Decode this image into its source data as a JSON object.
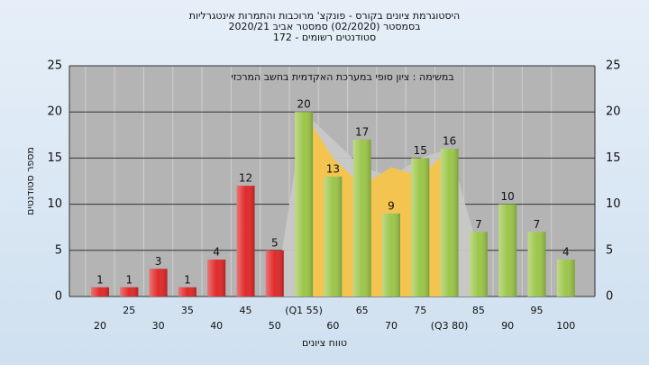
{
  "chart_data": {
    "type": "bar",
    "title_lines": [
      "היסטוגרמת ציונים בקורס - פונקצ' מרוכבות והתמרות אינטגרליות",
      "בסמסטר  (02/2020)  סמסטר אביב 2020/21",
      "סטודנטים רשומים - 172"
    ],
    "annotation": "במשימה : ציון סופי במערכת האקדמית בחשב המרכזי",
    "x_label": "טווח ציונים",
    "y_label": "מספר סטודנטים",
    "categories": [
      "20",
      "25",
      "30",
      "35",
      "40",
      "45",
      "50",
      "(Q1 55)",
      "60",
      "65",
      "70",
      "75",
      "(Q3 80)",
      "85",
      "90",
      "95",
      "100"
    ],
    "values": [
      1,
      1,
      3,
      1,
      4,
      12,
      5,
      20,
      13,
      17,
      9,
      15,
      16,
      7,
      10,
      7,
      4
    ],
    "colors": [
      "#e02a2a",
      "#e02a2a",
      "#e02a2a",
      "#e02a2a",
      "#e02a2a",
      "#e02a2a",
      "#e02a2a",
      "#9cc64a",
      "#9cc64a",
      "#9cc64a",
      "#9cc64a",
      "#9cc64a",
      "#9cc64a",
      "#9cc64a",
      "#9cc64a",
      "#9cc64a",
      "#9cc64a"
    ],
    "areas": [
      {
        "color": "#c8c8c8",
        "values": [
          null,
          null,
          null,
          null,
          null,
          null,
          0,
          20,
          17,
          14,
          13,
          15,
          16,
          5,
          null,
          null,
          null
        ]
      },
      {
        "color": "#f7c44a",
        "values": [
          null,
          null,
          null,
          null,
          null,
          null,
          null,
          20,
          15,
          12,
          14,
          13,
          16,
          null,
          null,
          null,
          null
        ]
      }
    ],
    "ylim": [
      0,
      25
    ],
    "yticks": [
      0,
      5,
      10,
      15,
      20,
      25
    ],
    "grid": true
  }
}
